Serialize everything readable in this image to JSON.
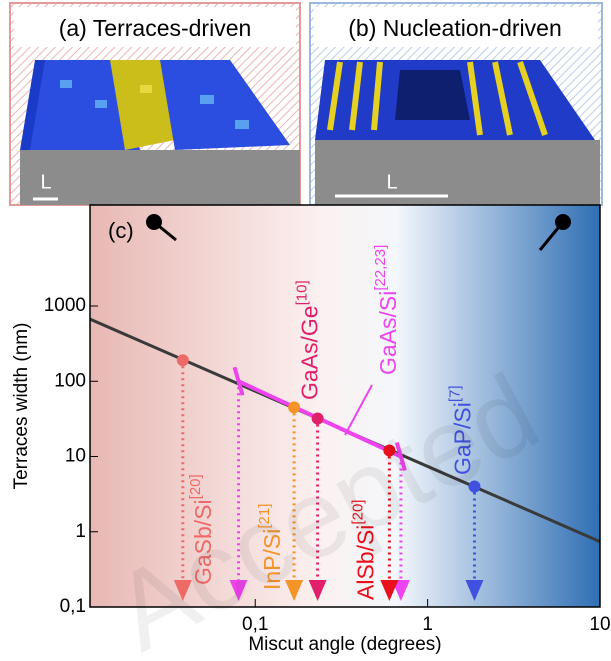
{
  "panels": [
    {
      "title": "(a) Terraces-driven",
      "scale": "L"
    },
    {
      "title": "(b) Nucleation-driven",
      "scale": "L"
    }
  ],
  "watermark": "Accepted",
  "chart_data": {
    "type": "line",
    "label": "(c)",
    "xlabel": "Miscut angle (degrees)",
    "ylabel": "Terraces width (nm)",
    "xscale": "log",
    "yscale": "log",
    "xlim": [
      0.011,
      10
    ],
    "ylim": [
      0.1,
      22000
    ],
    "xticks": [
      {
        "value": 0.1,
        "label": "0,1"
      },
      1,
      10
    ],
    "yticks": [
      {
        "value": 0.1,
        "label": "0,1"
      },
      1,
      10,
      100,
      1000
    ],
    "series": [
      {
        "color": "#3a3a3a",
        "x": [
          0.011,
          10
        ],
        "values": [
          670,
          0.74
        ]
      }
    ],
    "materials": [
      {
        "label": "GaSb/Si",
        "ref": "[20]",
        "color": "#ee6a66",
        "x": 0.038,
        "y": 190
      },
      {
        "label": "InP/Si",
        "ref": "[21]",
        "color": "#f39328",
        "x": 0.168,
        "y": 45
      },
      {
        "label": "GaAs/Ge",
        "ref": "[10]",
        "color": "#e0206a",
        "x": 0.23,
        "y": 32
      },
      {
        "label": "AlSb/Si",
        "ref": "[20]",
        "color": "#e8101a",
        "x": 0.6,
        "y": 12
      },
      {
        "label": "GaP/Si",
        "ref": "[7]",
        "color": "#4050e0",
        "x": 1.87,
        "y": 4
      }
    ],
    "range": {
      "label": "GaAs/Si",
      "ref": "[22,23]",
      "color": "#ee44ee",
      "x": [
        0.08,
        0.7
      ],
      "y": [
        100,
        10
      ]
    }
  }
}
